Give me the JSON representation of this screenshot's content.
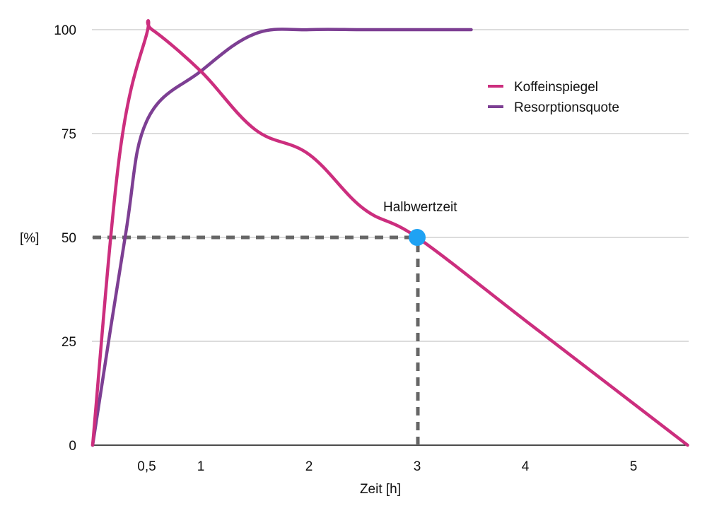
{
  "chart_data": {
    "type": "line",
    "title": "",
    "xlabel": "Zeit [h]",
    "ylabel": "[%]",
    "xlim": [
      0,
      5.5
    ],
    "ylim": [
      0,
      100
    ],
    "x_ticks": [
      {
        "value": 0.5,
        "label": "0,5"
      },
      {
        "value": 1,
        "label": "1"
      },
      {
        "value": 2,
        "label": "2"
      },
      {
        "value": 3,
        "label": "3"
      },
      {
        "value": 4,
        "label": "4"
      },
      {
        "value": 5,
        "label": "5"
      }
    ],
    "y_ticks": [
      {
        "value": 0,
        "label": "0"
      },
      {
        "value": 25,
        "label": "25"
      },
      {
        "value": 50,
        "label": "50"
      },
      {
        "value": 75,
        "label": "75"
      },
      {
        "value": 100,
        "label": "100"
      }
    ],
    "grid": {
      "horizontal": true,
      "vertical": false,
      "color": "#c8c8c8"
    },
    "legend": {
      "position": "upper-right"
    },
    "series": [
      {
        "name": "Koffeinspiegel",
        "color": "#cc2e7e",
        "x": [
          0,
          0.25,
          0.5,
          0.55,
          1,
          1.5,
          2,
          2.5,
          3,
          4,
          5,
          5.5
        ],
        "values": [
          0,
          70,
          99,
          100,
          90,
          76,
          70,
          57,
          50,
          30,
          10,
          0
        ]
      },
      {
        "name": "Resorptionsquote",
        "color": "#7d3f93",
        "x": [
          0,
          0.3,
          0.5,
          1,
          1.5,
          2,
          2.5,
          3,
          3.5
        ],
        "values": [
          0,
          50,
          78,
          90,
          99,
          100,
          100,
          100,
          100
        ]
      }
    ],
    "annotations": [
      {
        "type": "point",
        "x": 3,
        "y": 50,
        "label": "Halbwertzeit",
        "color": "#1fa2f3"
      },
      {
        "type": "dashed-hline",
        "y": 50,
        "from_x": 0,
        "to_x": 3,
        "color": "#666666"
      },
      {
        "type": "dashed-vline",
        "x": 3,
        "from_y": 0,
        "to_y": 50,
        "color": "#666666"
      }
    ]
  }
}
